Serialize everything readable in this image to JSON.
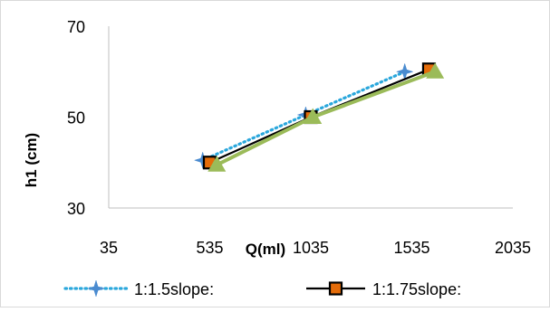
{
  "chart_data": {
    "type": "line",
    "title": "",
    "xlabel": "Q(ml)",
    "ylabel": "h1 (cm)",
    "xlim": [
      35,
      2035
    ],
    "ylim": [
      30,
      70
    ],
    "x_ticks": [
      35,
      535,
      1035,
      1535,
      2035
    ],
    "y_ticks": [
      30,
      50,
      70
    ],
    "x_tick_labels": [
      "35",
      "535",
      "1035",
      "1535",
      "2035"
    ],
    "y_tick_labels": [
      "30",
      "50",
      "70"
    ],
    "grid": false,
    "legend_position": "bottom",
    "series": [
      {
        "name": "1:1.5slope:",
        "color": "#2aa7dc",
        "marker_color": "#4a8bd0",
        "line_style": "dotted",
        "marker": "star",
        "x": [
          500,
          1010,
          1500
        ],
        "y": [
          40.5,
          50.5,
          60
        ]
      },
      {
        "name": "1:1.75slope:",
        "color": "#000000",
        "marker_color": "#e46c0a",
        "line_style": "solid",
        "marker": "square",
        "x": [
          535,
          1035,
          1620
        ],
        "y": [
          40,
          50,
          60.5
        ]
      },
      {
        "name": "",
        "color": "#9bbb59",
        "marker_color": "#9bbb59",
        "line_style": "solid",
        "marker": "triangle",
        "x": [
          570,
          1045,
          1650
        ],
        "y": [
          39.5,
          50,
          60
        ]
      }
    ]
  }
}
